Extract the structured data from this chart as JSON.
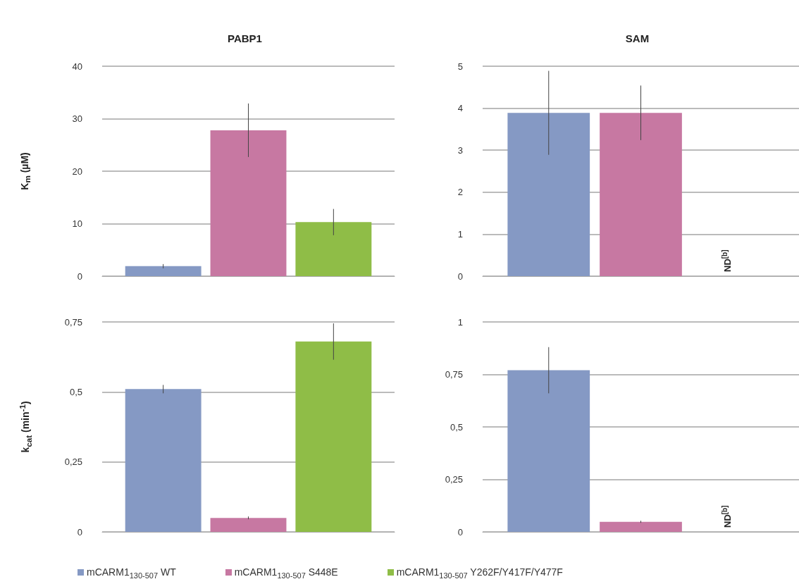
{
  "chart_data": [
    {
      "type": "bar",
      "title": "PABP1",
      "ylabel": "K$_{m}$ (µM)",
      "categories": [
        null
      ],
      "ylim": [
        0,
        40
      ],
      "yticks": [
        0,
        10,
        20,
        30,
        40
      ],
      "grid": "y",
      "legend": "bottom",
      "series": [
        {
          "name": "mCARM1$_{130-507}$ WT",
          "color": "#8599c4",
          "values": [
            1.9
          ],
          "errors": [
            0.4
          ]
        },
        {
          "name": "mCARM1$_{130-507}$ S448E",
          "color": "#c778a2",
          "values": [
            27.8
          ],
          "errors": [
            5.1
          ]
        },
        {
          "name": "mCARM1$_{130-507}$ Y262F/Y417F/Y477F",
          "color": "#8fbd47",
          "values": [
            10.3
          ],
          "errors": [
            2.5
          ]
        }
      ]
    },
    {
      "type": "bar",
      "title": "SAM",
      "categories": [
        null
      ],
      "ylim": [
        0,
        5
      ],
      "yticks": [
        0,
        1,
        2,
        3,
        4,
        5
      ],
      "grid": "y",
      "annotations": [
        "ND$^{[b]}$"
      ],
      "series": [
        {
          "color": "#8599c4",
          "values": [
            3.89
          ],
          "errors": [
            1.0
          ]
        },
        {
          "color": "#c778a2",
          "values": [
            3.89
          ],
          "errors": [
            0.65
          ]
        },
        {
          "color": "#8fbd47",
          "values": [
            null
          ],
          "errors": [
            null
          ]
        }
      ]
    },
    {
      "type": "bar",
      "ylabel": "k$_{cat}$ (min$^{-1}$)",
      "categories": [
        null
      ],
      "ylim": [
        0,
        0.75
      ],
      "yticks": [
        0,
        {
          "value": 0.25,
          "label": "0,25"
        },
        {
          "value": 0.5,
          "label": "0,5"
        },
        {
          "value": 0.75,
          "label": "0,75"
        }
      ],
      "grid": "y",
      "series": [
        {
          "color": "#8599c4",
          "values": [
            0.51
          ],
          "errors": [
            0.015
          ]
        },
        {
          "color": "#c778a2",
          "values": [
            0.05
          ],
          "errors": [
            0.005
          ]
        },
        {
          "color": "#8fbd47",
          "values": [
            0.68
          ],
          "errors": [
            0.065
          ]
        }
      ]
    },
    {
      "type": "bar",
      "categories": [
        null
      ],
      "ylim": [
        0,
        1
      ],
      "yticks": [
        0,
        {
          "value": 0.25,
          "label": "0,25"
        },
        {
          "value": 0.5,
          "label": "0,5"
        },
        {
          "value": 0.75,
          "label": "0,75"
        },
        1
      ],
      "grid": "y",
      "annotations": [
        "ND$^{[b]}$"
      ],
      "series": [
        {
          "color": "#8599c4",
          "values": [
            0.77
          ],
          "errors": [
            0.11
          ]
        },
        {
          "color": "#c778a2",
          "values": [
            0.048
          ],
          "errors": [
            0.005
          ]
        },
        {
          "color": "#8fbd47",
          "values": [
            null
          ],
          "errors": [
            null
          ]
        }
      ]
    }
  ]
}
